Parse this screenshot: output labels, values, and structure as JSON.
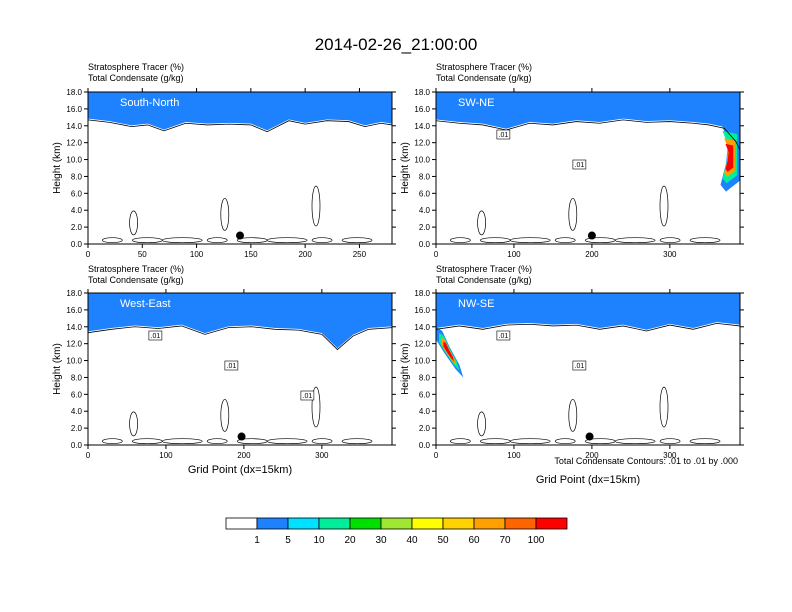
{
  "title": "2014-02-26_21:00:00",
  "colors": [
    "#ffffff",
    "#1e82ff",
    "#00e0ff",
    "#00ee99",
    "#00e000",
    "#a0e632",
    "#ffff00",
    "#ffd200",
    "#ffa000",
    "#ff6400",
    "#ff0000"
  ],
  "colorbar_labels": [
    "1",
    "5",
    "10",
    "20",
    "30",
    "40",
    "50",
    "60",
    "70",
    "100"
  ],
  "footer_note": "Total Condensate Contours: .01 to .01 by .000",
  "chart_data": [
    {
      "type": "contour",
      "header_line1": "Stratosphere Tracer   (%)",
      "header_line2": "Total Condensate   (g/kg)",
      "panel_label": "South-North",
      "ylabel": "Height (km)",
      "xlabel": "",
      "xlim": [
        0,
        280
      ],
      "ylim": [
        0,
        18
      ],
      "xticks": [
        0,
        50,
        100,
        150,
        200,
        250
      ],
      "yticks": [
        "0.0",
        "2.0",
        "4.0",
        "6.0",
        "8.0",
        "10.0",
        "12.0",
        "14.0",
        "16.0",
        "18.0"
      ],
      "marker_x": 140,
      "contour_labels": [],
      "tropopause": [
        [
          0,
          15.6
        ],
        [
          20,
          15.3
        ],
        [
          40,
          14.8
        ],
        [
          55,
          15.0
        ],
        [
          70,
          14.3
        ],
        [
          90,
          15.2
        ],
        [
          110,
          15.0
        ],
        [
          130,
          15.1
        ],
        [
          150,
          15.0
        ],
        [
          165,
          14.2
        ],
        [
          185,
          15.5
        ],
        [
          200,
          15.1
        ],
        [
          220,
          15.5
        ],
        [
          240,
          15.4
        ],
        [
          255,
          14.8
        ],
        [
          270,
          15.2
        ],
        [
          280,
          15.0
        ]
      ]
    },
    {
      "type": "contour",
      "header_line1": "Stratosphere Tracer   (%)",
      "header_line2": "Total Condensate   (g/kg)",
      "panel_label": "SW-NE",
      "ylabel": "Height (km)",
      "xlabel": "",
      "xlim": [
        0,
        390
      ],
      "ylim": [
        0,
        18
      ],
      "xticks": [
        0,
        100,
        200,
        300
      ],
      "yticks": [
        "0.0",
        "2.0",
        "4.0",
        "6.0",
        "8.0",
        "10.0",
        "12.0",
        "14.0",
        "16.0",
        "18.0"
      ],
      "marker_x": 200,
      "contour_labels": [
        ".01",
        ".01"
      ],
      "tropopause": [
        [
          0,
          15.5
        ],
        [
          30,
          15.2
        ],
        [
          60,
          15.0
        ],
        [
          90,
          14.4
        ],
        [
          120,
          15.2
        ],
        [
          150,
          15.0
        ],
        [
          180,
          15.4
        ],
        [
          210,
          15.2
        ],
        [
          240,
          15.6
        ],
        [
          270,
          15.3
        ],
        [
          300,
          15.4
        ],
        [
          330,
          15.2
        ],
        [
          350,
          15.0
        ],
        [
          370,
          14.6
        ],
        [
          385,
          13.0
        ],
        [
          390,
          12.0
        ]
      ],
      "intrusion": [
        [
          365,
          14.5
        ],
        [
          375,
          12.0
        ],
        [
          372,
          9.5
        ],
        [
          365,
          7.0
        ],
        [
          372,
          6.2
        ],
        [
          390,
          7.5
        ],
        [
          390,
          14.0
        ]
      ]
    },
    {
      "type": "contour",
      "header_line1": "Stratosphere Tracer   (%)",
      "header_line2": "Total Condensate   (g/kg)",
      "panel_label": "West-East",
      "ylabel": "Height (km)",
      "xlabel": "Grid Point (dx=15km)",
      "xlim": [
        0,
        390
      ],
      "ylim": [
        0,
        18
      ],
      "xticks": [
        0,
        100,
        200,
        300
      ],
      "yticks": [
        "0.0",
        "2.0",
        "4.0",
        "6.0",
        "8.0",
        "10.0",
        "12.0",
        "14.0",
        "16.0",
        "18.0"
      ],
      "marker_x": 197,
      "contour_labels": [
        ".01",
        ".01",
        ".01"
      ],
      "tropopause": [
        [
          0,
          14.2
        ],
        [
          30,
          14.6
        ],
        [
          60,
          14.9
        ],
        [
          90,
          14.7
        ],
        [
          120,
          15.0
        ],
        [
          150,
          14.0
        ],
        [
          180,
          14.8
        ],
        [
          210,
          14.9
        ],
        [
          240,
          14.6
        ],
        [
          270,
          14.5
        ],
        [
          300,
          14.0
        ],
        [
          320,
          12.2
        ],
        [
          340,
          13.8
        ],
        [
          360,
          14.6
        ],
        [
          390,
          14.8
        ]
      ]
    },
    {
      "type": "contour",
      "header_line1": "Stratosphere Tracer   (%)",
      "header_line2": "Total Condensate   (g/kg)",
      "panel_label": "NW-SE",
      "ylabel": "Height (km)",
      "xlabel": "Grid Point (dx=15km)",
      "xlim": [
        0,
        390
      ],
      "ylim": [
        0,
        18
      ],
      "xticks": [
        0,
        100,
        200,
        300
      ],
      "yticks": [
        "0.0",
        "2.0",
        "4.0",
        "6.0",
        "8.0",
        "10.0",
        "12.0",
        "14.0",
        "16.0",
        "18.0"
      ],
      "marker_x": 197,
      "contour_labels": [
        ".01",
        ".01"
      ],
      "tropopause": [
        [
          0,
          14.6
        ],
        [
          30,
          15.0
        ],
        [
          60,
          14.6
        ],
        [
          90,
          15.1
        ],
        [
          120,
          15.2
        ],
        [
          150,
          15.0
        ],
        [
          180,
          15.1
        ],
        [
          210,
          14.6
        ],
        [
          240,
          15.0
        ],
        [
          270,
          14.4
        ],
        [
          300,
          15.1
        ],
        [
          330,
          14.6
        ],
        [
          360,
          15.3
        ],
        [
          390,
          15.0
        ]
      ],
      "intrusion": [
        [
          0,
          12.5
        ],
        [
          10,
          11.0
        ],
        [
          25,
          9.0
        ],
        [
          35,
          8.0
        ],
        [
          30,
          9.5
        ],
        [
          18,
          11.5
        ],
        [
          8,
          13.5
        ],
        [
          0,
          14.0
        ]
      ]
    }
  ]
}
